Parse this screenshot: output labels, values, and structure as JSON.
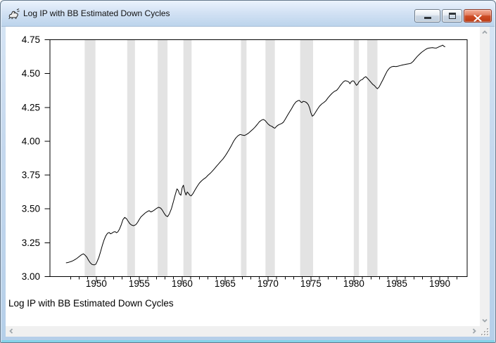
{
  "window": {
    "title": "Log IP with BB Estimated Down Cycles",
    "app_icon": "rat-icon",
    "controls": {
      "minimize_label": "minimize",
      "maximize_label": "maximize",
      "close_label": "close"
    }
  },
  "scrollbars": {
    "vertical": {
      "up_icon": "chevron-up",
      "down_icon": "chevron-down"
    },
    "horizontal": {
      "left_icon": "chevron-left",
      "right_icon": "chevron-right"
    },
    "corner_icon": "resize-grip-dots"
  },
  "chart_data": {
    "type": "line",
    "title": "",
    "footer_label": "Log IP with BB Estimated Down Cycles",
    "xlabel": "",
    "ylabel": "",
    "xlim": [
      1944.6,
      1993.2
    ],
    "ylim": [
      3.0,
      4.75
    ],
    "grid": false,
    "legend_position": "none",
    "y_ticks": [
      3.0,
      3.25,
      3.5,
      3.75,
      4.0,
      4.25,
      4.5,
      4.75
    ],
    "y_tick_labels": [
      "3.00",
      "3.25",
      "3.50",
      "3.75",
      "4.00",
      "4.25",
      "4.50",
      "4.75"
    ],
    "x_ticks_major": [
      1950,
      1955,
      1960,
      1965,
      1970,
      1975,
      1980,
      1985,
      1990
    ],
    "x_minor_tick_start": 1947,
    "x_minor_tick_end": 1992,
    "colors": {
      "line": "#000000",
      "down_cycle_band": "#e3e3e3",
      "plot_background": "#ffffff",
      "frame": "#000000"
    },
    "down_cycle_bands": [
      [
        1948.65,
        1949.9
      ],
      [
        1953.6,
        1954.5
      ],
      [
        1957.15,
        1958.3
      ],
      [
        1960.15,
        1961.1
      ],
      [
        1966.85,
        1967.5
      ],
      [
        1969.7,
        1970.8
      ],
      [
        1973.75,
        1975.25
      ],
      [
        1980.0,
        1980.6
      ],
      [
        1981.55,
        1982.75
      ]
    ],
    "series": [
      {
        "name": "Log IP",
        "points": [
          [
            1946.5,
            3.102
          ],
          [
            1946.7,
            3.104
          ],
          [
            1946.9,
            3.108
          ],
          [
            1947.1,
            3.112
          ],
          [
            1947.3,
            3.118
          ],
          [
            1947.5,
            3.125
          ],
          [
            1947.75,
            3.135
          ],
          [
            1948.0,
            3.148
          ],
          [
            1948.25,
            3.16
          ],
          [
            1948.5,
            3.168
          ],
          [
            1948.7,
            3.158
          ],
          [
            1948.9,
            3.143
          ],
          [
            1949.1,
            3.12
          ],
          [
            1949.3,
            3.102
          ],
          [
            1949.5,
            3.09
          ],
          [
            1949.75,
            3.086
          ],
          [
            1949.95,
            3.092
          ],
          [
            1950.1,
            3.112
          ],
          [
            1950.3,
            3.142
          ],
          [
            1950.5,
            3.185
          ],
          [
            1950.7,
            3.23
          ],
          [
            1950.9,
            3.27
          ],
          [
            1951.1,
            3.3
          ],
          [
            1951.3,
            3.32
          ],
          [
            1951.5,
            3.326
          ],
          [
            1951.65,
            3.316
          ],
          [
            1951.8,
            3.32
          ],
          [
            1952.0,
            3.329
          ],
          [
            1952.2,
            3.332
          ],
          [
            1952.35,
            3.324
          ],
          [
            1952.5,
            3.33
          ],
          [
            1952.7,
            3.35
          ],
          [
            1952.9,
            3.382
          ],
          [
            1953.1,
            3.42
          ],
          [
            1953.3,
            3.437
          ],
          [
            1953.5,
            3.429
          ],
          [
            1953.7,
            3.41
          ],
          [
            1953.9,
            3.391
          ],
          [
            1954.1,
            3.381
          ],
          [
            1954.35,
            3.376
          ],
          [
            1954.6,
            3.383
          ],
          [
            1954.8,
            3.4
          ],
          [
            1955.0,
            3.421
          ],
          [
            1955.2,
            3.441
          ],
          [
            1955.45,
            3.456
          ],
          [
            1955.7,
            3.47
          ],
          [
            1955.95,
            3.481
          ],
          [
            1956.15,
            3.487
          ],
          [
            1956.35,
            3.478
          ],
          [
            1956.55,
            3.483
          ],
          [
            1956.75,
            3.491
          ],
          [
            1957.0,
            3.503
          ],
          [
            1957.25,
            3.512
          ],
          [
            1957.5,
            3.506
          ],
          [
            1957.7,
            3.49
          ],
          [
            1957.9,
            3.468
          ],
          [
            1958.1,
            3.45
          ],
          [
            1958.3,
            3.443
          ],
          [
            1958.5,
            3.462
          ],
          [
            1958.75,
            3.502
          ],
          [
            1959.0,
            3.558
          ],
          [
            1959.2,
            3.605
          ],
          [
            1959.4,
            3.648
          ],
          [
            1959.55,
            3.636
          ],
          [
            1959.7,
            3.61
          ],
          [
            1959.85,
            3.601
          ],
          [
            1960.0,
            3.656
          ],
          [
            1960.15,
            3.675
          ],
          [
            1960.3,
            3.628
          ],
          [
            1960.45,
            3.603
          ],
          [
            1960.6,
            3.625
          ],
          [
            1960.75,
            3.614
          ],
          [
            1960.9,
            3.601
          ],
          [
            1961.05,
            3.596
          ],
          [
            1961.25,
            3.612
          ],
          [
            1961.5,
            3.64
          ],
          [
            1961.75,
            3.667
          ],
          [
            1962.0,
            3.69
          ],
          [
            1962.25,
            3.707
          ],
          [
            1962.5,
            3.72
          ],
          [
            1962.75,
            3.731
          ],
          [
            1963.0,
            3.748
          ],
          [
            1963.25,
            3.762
          ],
          [
            1963.5,
            3.778
          ],
          [
            1963.75,
            3.796
          ],
          [
            1964.0,
            3.815
          ],
          [
            1964.25,
            3.833
          ],
          [
            1964.5,
            3.851
          ],
          [
            1964.75,
            3.869
          ],
          [
            1965.0,
            3.89
          ],
          [
            1965.25,
            3.915
          ],
          [
            1965.5,
            3.941
          ],
          [
            1965.75,
            3.97
          ],
          [
            1966.0,
            4.0
          ],
          [
            1966.25,
            4.024
          ],
          [
            1966.5,
            4.04
          ],
          [
            1966.75,
            4.05
          ],
          [
            1967.0,
            4.046
          ],
          [
            1967.25,
            4.042
          ],
          [
            1967.5,
            4.05
          ],
          [
            1967.75,
            4.061
          ],
          [
            1968.0,
            4.075
          ],
          [
            1968.25,
            4.089
          ],
          [
            1968.5,
            4.105
          ],
          [
            1968.75,
            4.124
          ],
          [
            1969.0,
            4.144
          ],
          [
            1969.25,
            4.156
          ],
          [
            1969.45,
            4.161
          ],
          [
            1969.65,
            4.154
          ],
          [
            1969.85,
            4.139
          ],
          [
            1970.05,
            4.125
          ],
          [
            1970.25,
            4.115
          ],
          [
            1970.45,
            4.11
          ],
          [
            1970.65,
            4.1
          ],
          [
            1970.8,
            4.096
          ],
          [
            1971.0,
            4.11
          ],
          [
            1971.2,
            4.12
          ],
          [
            1971.4,
            4.126
          ],
          [
            1971.6,
            4.131
          ],
          [
            1971.8,
            4.141
          ],
          [
            1972.0,
            4.161
          ],
          [
            1972.25,
            4.189
          ],
          [
            1972.5,
            4.215
          ],
          [
            1972.75,
            4.241
          ],
          [
            1973.0,
            4.269
          ],
          [
            1973.25,
            4.29
          ],
          [
            1973.5,
            4.3
          ],
          [
            1973.65,
            4.302
          ],
          [
            1973.8,
            4.291
          ],
          [
            1973.95,
            4.286
          ],
          [
            1974.1,
            4.295
          ],
          [
            1974.3,
            4.292
          ],
          [
            1974.5,
            4.285
          ],
          [
            1974.7,
            4.269
          ],
          [
            1974.85,
            4.245
          ],
          [
            1975.0,
            4.21
          ],
          [
            1975.15,
            4.185
          ],
          [
            1975.3,
            4.191
          ],
          [
            1975.5,
            4.21
          ],
          [
            1975.75,
            4.236
          ],
          [
            1976.0,
            4.259
          ],
          [
            1976.25,
            4.275
          ],
          [
            1976.5,
            4.286
          ],
          [
            1976.75,
            4.3
          ],
          [
            1977.0,
            4.321
          ],
          [
            1977.25,
            4.34
          ],
          [
            1977.5,
            4.356
          ],
          [
            1977.75,
            4.369
          ],
          [
            1978.0,
            4.376
          ],
          [
            1978.2,
            4.391
          ],
          [
            1978.4,
            4.41
          ],
          [
            1978.6,
            4.426
          ],
          [
            1978.8,
            4.44
          ],
          [
            1979.0,
            4.447
          ],
          [
            1979.2,
            4.444
          ],
          [
            1979.4,
            4.439
          ],
          [
            1979.55,
            4.425
          ],
          [
            1979.7,
            4.44
          ],
          [
            1979.85,
            4.446
          ],
          [
            1980.0,
            4.444
          ],
          [
            1980.15,
            4.429
          ],
          [
            1980.3,
            4.413
          ],
          [
            1980.45,
            4.421
          ],
          [
            1980.6,
            4.44
          ],
          [
            1980.8,
            4.451
          ],
          [
            1981.0,
            4.456
          ],
          [
            1981.2,
            4.47
          ],
          [
            1981.4,
            4.477
          ],
          [
            1981.6,
            4.464
          ],
          [
            1981.8,
            4.45
          ],
          [
            1982.0,
            4.435
          ],
          [
            1982.2,
            4.42
          ],
          [
            1982.4,
            4.411
          ],
          [
            1982.6,
            4.396
          ],
          [
            1982.75,
            4.388
          ],
          [
            1982.95,
            4.401
          ],
          [
            1983.15,
            4.426
          ],
          [
            1983.4,
            4.456
          ],
          [
            1983.65,
            4.49
          ],
          [
            1983.9,
            4.52
          ],
          [
            1984.15,
            4.54
          ],
          [
            1984.4,
            4.55
          ],
          [
            1984.65,
            4.553
          ],
          [
            1984.9,
            4.551
          ],
          [
            1985.15,
            4.555
          ],
          [
            1985.4,
            4.559
          ],
          [
            1985.65,
            4.563
          ],
          [
            1985.9,
            4.566
          ],
          [
            1986.15,
            4.57
          ],
          [
            1986.4,
            4.572
          ],
          [
            1986.65,
            4.576
          ],
          [
            1986.9,
            4.589
          ],
          [
            1987.15,
            4.609
          ],
          [
            1987.4,
            4.627
          ],
          [
            1987.65,
            4.643
          ],
          [
            1987.9,
            4.657
          ],
          [
            1988.15,
            4.669
          ],
          [
            1988.4,
            4.68
          ],
          [
            1988.65,
            4.687
          ],
          [
            1988.9,
            4.69
          ],
          [
            1989.15,
            4.692
          ],
          [
            1989.4,
            4.689
          ],
          [
            1989.6,
            4.688
          ],
          [
            1989.8,
            4.694
          ],
          [
            1990.0,
            4.7
          ],
          [
            1990.2,
            4.705
          ],
          [
            1990.35,
            4.71
          ],
          [
            1990.5,
            4.701
          ],
          [
            1990.6,
            4.698
          ]
        ]
      }
    ]
  }
}
